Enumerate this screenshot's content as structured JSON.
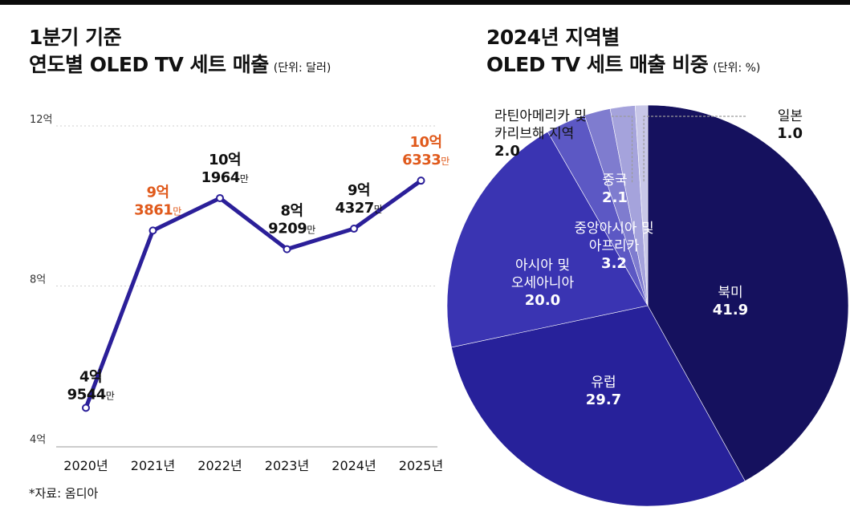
{
  "line_chart": {
    "title_line1": "1분기 기준",
    "title_line2": "연도별 OLED TV 세트 매출",
    "unit": "(단위: 달러)"
  },
  "pie_chart": {
    "title_line1": "2024년 지역별",
    "title_line2": "OLED TV 세트 매출 비중",
    "unit": "(단위: %)"
  },
  "source": "*자료: 옴디아",
  "colors": {
    "line": "#2b1f99",
    "highlight": "#e05a1c",
    "north_america": "#15115e",
    "europe": "#27219a",
    "asia_oceania": "#3a34b2",
    "mea": "#5c58c4",
    "china": "#7f7ccf",
    "latam": "#a5a3dc",
    "japan": "#c8c7e8"
  },
  "chart_data": [
    {
      "type": "line",
      "title": "1분기 기준 연도별 OLED TV 세트 매출",
      "ylabel": "(단위: 달러)",
      "x": [
        "2020년",
        "2021년",
        "2022년",
        "2023년",
        "2024년",
        "2025년"
      ],
      "values": [
        4.9544,
        9.3861,
        10.1964,
        8.9209,
        9.4327,
        10.6333
      ],
      "y_ticks": [
        "4억",
        "8억",
        "12억"
      ],
      "y_tick_values": [
        4,
        8,
        12
      ],
      "ylim": [
        4,
        12
      ],
      "grid": true,
      "labels": [
        {
          "eok": "4억",
          "man": "9544",
          "man_unit": "만",
          "highlight": false
        },
        {
          "eok": "9억",
          "man": "3861",
          "man_unit": "만",
          "highlight": true
        },
        {
          "eok": "10억",
          "man": "1964",
          "man_unit": "만",
          "highlight": false
        },
        {
          "eok": "8억",
          "man": "9209",
          "man_unit": "만",
          "highlight": false
        },
        {
          "eok": "9억",
          "man": "4327",
          "man_unit": "만",
          "highlight": false
        },
        {
          "eok": "10억",
          "man": "6333",
          "man_unit": "만",
          "highlight": true
        }
      ]
    },
    {
      "type": "pie",
      "title": "2024년 지역별 OLED TV 세트 매출 비중",
      "slices": [
        {
          "key": "north_america",
          "label": [
            "북미"
          ],
          "value": 41.9,
          "value_label": "41.9"
        },
        {
          "key": "europe",
          "label": [
            "유럽"
          ],
          "value": 29.7,
          "value_label": "29.7"
        },
        {
          "key": "asia_oceania",
          "label": [
            "아시아 및",
            "오세아니아"
          ],
          "value": 20.0,
          "value_label": "20.0"
        },
        {
          "key": "mea",
          "label": [
            "중앙아시아 및",
            "아프리카"
          ],
          "value": 3.2,
          "value_label": "3.2"
        },
        {
          "key": "china",
          "label": [
            "중국"
          ],
          "value": 2.1,
          "value_label": "2.1"
        },
        {
          "key": "latam",
          "label": [
            "라틴아메리카 및",
            "카리브해 지역"
          ],
          "value": 2.0,
          "value_label": "2.0"
        },
        {
          "key": "japan",
          "label": [
            "일본"
          ],
          "value": 1.0,
          "value_label": "1.0"
        }
      ]
    }
  ]
}
